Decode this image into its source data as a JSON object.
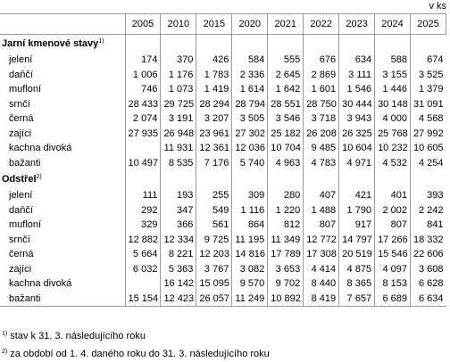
{
  "unit": "v ks",
  "table": {
    "columns": [
      "2005",
      "2010",
      "2015",
      "2020",
      "2021",
      "2022",
      "2023",
      "2024",
      "2025"
    ],
    "sections": [
      {
        "title": "Jarní kmenové stavy",
        "note": "1)",
        "rows": [
          {
            "label": "jelení",
            "values": [
              "174",
              "370",
              "426",
              "584",
              "555",
              "676",
              "634",
              "588",
              "674"
            ]
          },
          {
            "label": "daňčí",
            "values": [
              "1 006",
              "1 176",
              "1 783",
              "2 336",
              "2 645",
              "2 869",
              "3 111",
              "3 155",
              "3 525"
            ]
          },
          {
            "label": "mufloní",
            "values": [
              "746",
              "1 073",
              "1 419",
              "1 614",
              "1 642",
              "1 601",
              "1 546",
              "1 446",
              "1 379"
            ]
          },
          {
            "label": "srnčí",
            "values": [
              "28 433",
              "29 725",
              "28 294",
              "28 794",
              "28 551",
              "28 750",
              "30 444",
              "30 148",
              "31 091"
            ]
          },
          {
            "label": "černá",
            "values": [
              "2 074",
              "3 191",
              "3 207",
              "3 505",
              "3 546",
              "3 718",
              "3 943",
              "4 000",
              "4 568"
            ]
          },
          {
            "label": "zajíci",
            "values": [
              "27 935",
              "26 948",
              "23 961",
              "27 302",
              "25 182",
              "26 208",
              "26 325",
              "25 768",
              "27 992"
            ]
          },
          {
            "label": "kachna divoká",
            "values": [
              null,
              "11 931",
              "12 361",
              "12 036",
              "10 704",
              "9 485",
              "10 604",
              "10 232",
              "10 605"
            ]
          },
          {
            "label": "bažanti",
            "values": [
              "10 497",
              "8 535",
              "7 176",
              "5 740",
              "4 963",
              "4 783",
              "4 971",
              "4 532",
              "4 254"
            ]
          }
        ]
      },
      {
        "title": "Odstřel",
        "note": "2)",
        "rows": [
          {
            "label": "jelení",
            "values": [
              "111",
              "193",
              "255",
              "309",
              "280",
              "407",
              "421",
              "401",
              "393"
            ]
          },
          {
            "label": "daňčí",
            "values": [
              "292",
              "347",
              "549",
              "1 116",
              "1 220",
              "1 488",
              "1 790",
              "2 002",
              "2 242"
            ]
          },
          {
            "label": "mufloní",
            "values": [
              "329",
              "366",
              "561",
              "864",
              "812",
              "807",
              "917",
              "807",
              "841"
            ]
          },
          {
            "label": "srnčí",
            "values": [
              "12 882",
              "12 334",
              "9 725",
              "11 195",
              "11 349",
              "12 772",
              "14 797",
              "17 266",
              "18 332"
            ]
          },
          {
            "label": "černá",
            "values": [
              "5 664",
              "8 221",
              "12 203",
              "14 816",
              "17 789",
              "17 308",
              "20 519",
              "15 546",
              "22 606"
            ]
          },
          {
            "label": "zajíci",
            "values": [
              "6 032",
              "5 363",
              "3 767",
              "3 082",
              "3 653",
              "4 414",
              "4 875",
              "4 097",
              "3 608"
            ]
          },
          {
            "label": "kachna divoká",
            "values": [
              null,
              "16 142",
              "15 095",
              "9 570",
              "9 702",
              "8 440",
              "8 365",
              "8 153",
              "6 628"
            ]
          },
          {
            "label": "bažanti",
            "values": [
              "15 154",
              "12 423",
              "26 057",
              "11 249",
              "10 892",
              "8 419",
              "7 657",
              "6 689",
              "6 634"
            ]
          }
        ]
      }
    ]
  },
  "footnotes": [
    {
      "mark": "1)",
      "text": "stav k 31. 3. následujícího roku"
    },
    {
      "mark": "2)",
      "text": "za období od 1. 4. daného roku do 31. 3. následujícího roku"
    }
  ]
}
